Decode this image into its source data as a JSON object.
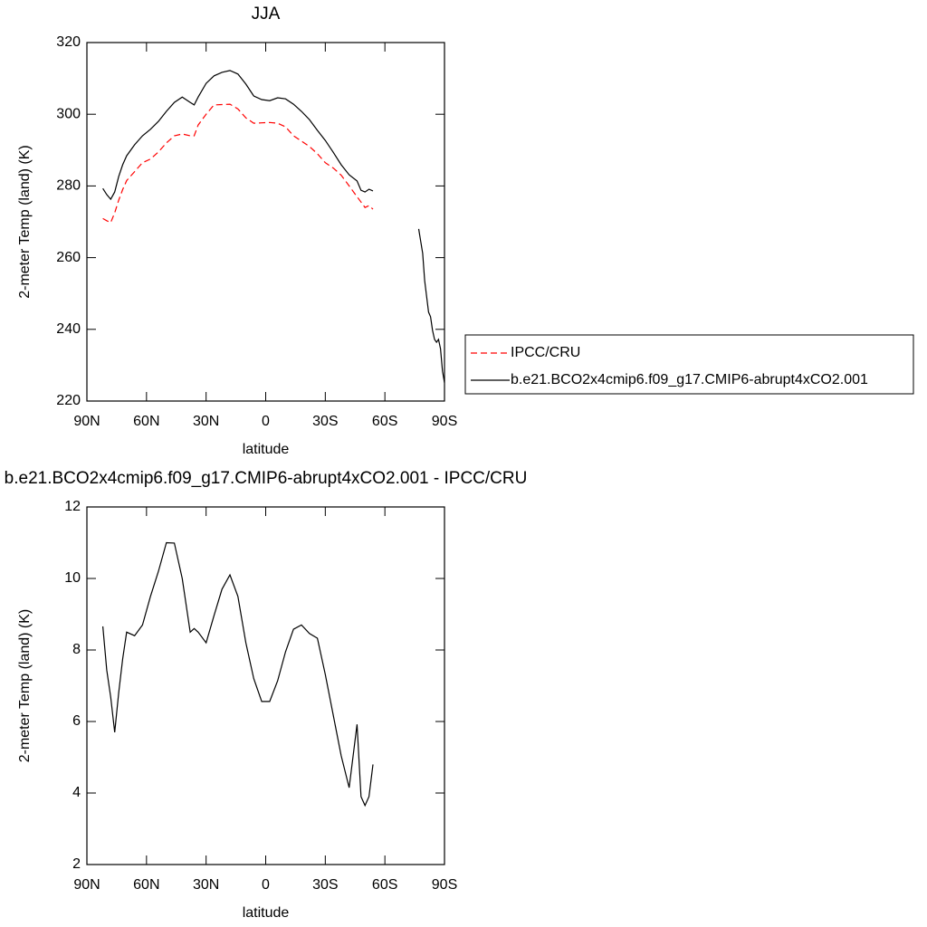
{
  "chart_data": [
    {
      "type": "line",
      "title": "JJA",
      "x_label": "latitude",
      "y_label": "2-meter Temp (land) (K)",
      "x": [
        82,
        80,
        78,
        76,
        74,
        72,
        70,
        66,
        62,
        58,
        54,
        50,
        46,
        42,
        38,
        36,
        34,
        30,
        26,
        22,
        18,
        14,
        10,
        6,
        2,
        -2,
        -6,
        -10,
        -14,
        -18,
        -22,
        -26,
        -30,
        -34,
        -38,
        -42,
        -46,
        -48,
        -50,
        -52,
        -54,
        -60,
        -77,
        -79,
        -80,
        -82,
        -83,
        -84,
        -85,
        -86,
        -87,
        -88,
        -89,
        -90
      ],
      "series": [
        {
          "name": "IPCC/CRU",
          "color": "#ff0000",
          "linestyle": "dashed",
          "values": [
            270.9,
            270.3,
            269.8,
            272.5,
            276,
            279,
            281.5,
            284,
            286.5,
            287.5,
            289.5,
            292,
            294,
            294.5,
            294,
            294,
            297,
            300,
            302.6,
            302.7,
            302.8,
            301.5,
            299,
            297.5,
            297.6,
            297.7,
            297.5,
            296.5,
            294,
            292.5,
            291,
            289,
            286.5,
            285,
            283,
            280,
            277,
            275.5,
            274,
            274.5,
            273.5,
            null,
            null,
            null,
            null,
            null,
            null,
            null,
            null,
            null,
            null,
            null,
            null,
            null
          ]
        },
        {
          "name": "b.e21.BCO2x4cmip6.f09_g17.CMIP6-abrupt4xCO2.001",
          "color": "#000000",
          "linestyle": "solid",
          "values": [
            279.3,
            277.6,
            276.3,
            278.3,
            282.6,
            285.9,
            288.4,
            291.5,
            294,
            295.8,
            298,
            300.8,
            303.3,
            304.8,
            303.3,
            302.6,
            304.8,
            308.6,
            310.7,
            311.7,
            312.2,
            311.2,
            308.4,
            305.1,
            304.1,
            303.8,
            304.6,
            304.3,
            302.8,
            300.8,
            298.5,
            295.5,
            292.7,
            289.4,
            285.9,
            283.1,
            281.4,
            278.8,
            278.3,
            279.1,
            278.6,
            null,
            268,
            261.2,
            253.6,
            244.8,
            243.5,
            239.7,
            237.2,
            236.4,
            237.2,
            234.6,
            228.3,
            225.1
          ]
        }
      ],
      "xlim": [
        90,
        -90
      ],
      "xticks": [
        {
          "value": 90,
          "label": "90N"
        },
        {
          "value": 60,
          "label": "60N"
        },
        {
          "value": 30,
          "label": "30N"
        },
        0,
        {
          "value": -30,
          "label": "30S"
        },
        {
          "value": -60,
          "label": "60S"
        },
        {
          "value": -90,
          "label": "90S"
        }
      ],
      "ylim": [
        220,
        320
      ],
      "yticks": [
        220,
        240,
        260,
        280,
        300,
        320
      ],
      "legend": "right"
    },
    {
      "type": "line",
      "title": "b.e21.BCO2x4cmip6.f09_g17.CMIP6-abrupt4xCO2.001 - IPCC/CRU",
      "x_label": "latitude",
      "y_label": "2-meter Temp (land) (K)",
      "x": [
        82,
        80,
        78,
        76,
        74,
        72,
        70,
        66,
        62,
        58,
        54,
        50,
        46,
        42,
        38,
        36,
        34,
        30,
        26,
        22,
        18,
        14,
        10,
        6,
        2,
        -2,
        -6,
        -10,
        -14,
        -18,
        -22,
        -26,
        -30,
        -34,
        -38,
        -42,
        -46,
        -48,
        -50,
        -52,
        -54
      ],
      "series": [
        {
          "color": "#000000",
          "linestyle": "solid",
          "values": [
            8.66,
            7.44,
            6.68,
            5.7,
            6.8,
            7.75,
            8.5,
            8.4,
            8.7,
            9.5,
            10.2,
            11.0,
            10.99,
            10.0,
            8.5,
            8.6,
            8.5,
            8.2,
            8.96,
            9.7,
            10.1,
            9.5,
            8.2,
            7.2,
            6.56,
            6.56,
            7.14,
            7.95,
            8.58,
            8.7,
            8.46,
            8.33,
            7.32,
            6.18,
            5.04,
            4.15,
            5.92,
            3.9,
            3.65,
            3.9,
            4.8
          ]
        }
      ],
      "xlim": [
        90,
        -90
      ],
      "xticks": [
        {
          "value": 90,
          "label": "90N"
        },
        {
          "value": 60,
          "label": "60N"
        },
        {
          "value": 30,
          "label": "30N"
        },
        0,
        {
          "value": -30,
          "label": "30S"
        },
        {
          "value": -60,
          "label": "60S"
        },
        {
          "value": -90,
          "label": "90S"
        }
      ],
      "ylim": [
        2,
        12
      ],
      "yticks": [
        2,
        4,
        6,
        8,
        10,
        12
      ]
    }
  ]
}
